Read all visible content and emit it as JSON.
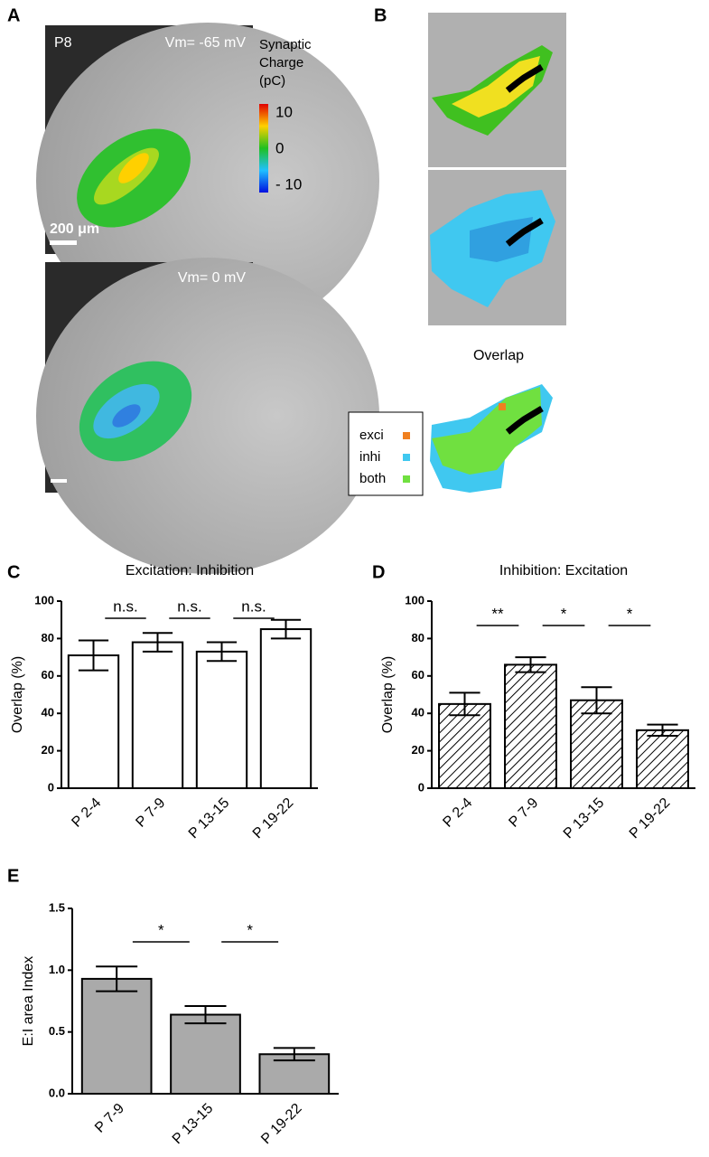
{
  "panel_a": {
    "letter": "A",
    "age": "P8",
    "vm_top": "Vm= -65 mV",
    "vm_bottom": "Vm= 0 mV",
    "scale_bar": "200 μm",
    "colorbar": {
      "title": [
        "Synaptic",
        "Charge",
        "(pC)"
      ],
      "ticks": [
        10,
        0,
        {
          "value": -10,
          "label": "- 10"
        }
      ]
    }
  },
  "panel_b": {
    "letter": "B",
    "overlap_title": "Overlap",
    "legend": [
      "exci",
      "inhi",
      "both"
    ]
  },
  "chart_data": [
    {
      "type": "bar",
      "panel_label": "C",
      "title": "Excitation: Inhibition",
      "y_label": "Overlap (%)",
      "categories": [
        "P 2-4",
        "P 7-9",
        "P 13-15",
        "P 19-22"
      ],
      "values": [
        71,
        78,
        73,
        85
      ],
      "errors": [
        8,
        5,
        5,
        5
      ],
      "color": "#ffffff",
      "hatch": false,
      "ylim": [
        0,
        100
      ],
      "yticks": [
        0,
        20,
        40,
        60,
        80,
        100
      ],
      "annotations": [
        "n.s.",
        "n.s.",
        "n.s."
      ]
    },
    {
      "type": "bar",
      "panel_label": "D",
      "title": "Inhibition: Excitation",
      "y_label": "Overlap (%)",
      "categories": [
        "P 2-4",
        "P 7-9",
        "P 13-15",
        "P 19-22"
      ],
      "values": [
        45,
        66,
        47,
        31
      ],
      "errors": [
        6,
        4,
        7,
        3
      ],
      "color": "#ffffff",
      "hatch": true,
      "ylim": [
        0,
        100
      ],
      "yticks": [
        0,
        20,
        40,
        60,
        80,
        100
      ],
      "annotations": [
        "**",
        "*",
        "*"
      ]
    },
    {
      "type": "bar",
      "panel_label": "E",
      "y_label": "E:I area Index",
      "categories": [
        "P 7-9",
        "P 13-15",
        "P 19-22"
      ],
      "values": [
        0.93,
        0.64,
        0.32
      ],
      "errors": [
        0.1,
        0.07,
        0.05
      ],
      "color": "#aaaaaa",
      "hatch": false,
      "ylim": [
        0,
        1.5
      ],
      "yticks": [
        {
          "value": 0,
          "label": "0.0"
        },
        {
          "value": 0.5,
          "label": "0.5"
        },
        {
          "value": 1,
          "label": "1.0"
        },
        {
          "value": 1.5,
          "label": "1.5"
        }
      ],
      "annotations": [
        "*",
        "*"
      ]
    }
  ]
}
